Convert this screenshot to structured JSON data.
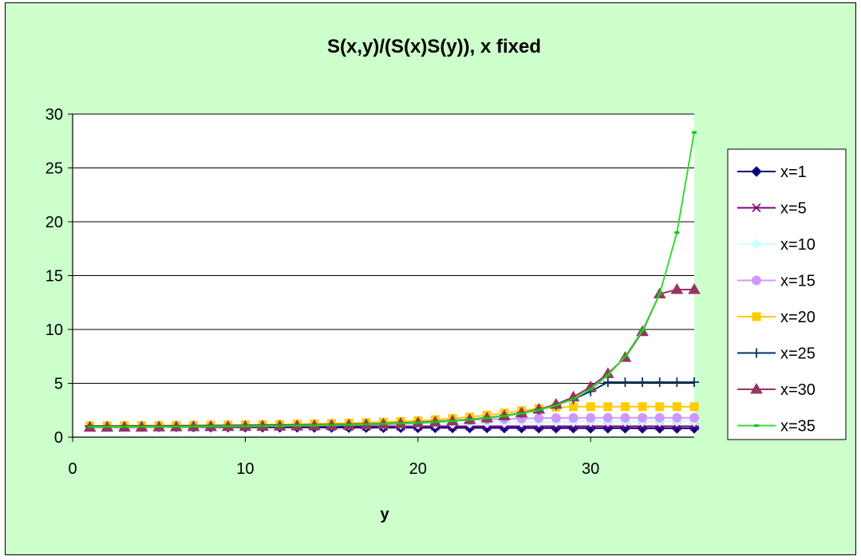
{
  "chart_data": {
    "type": "line",
    "title": "S(x,y)/(S(x)S(y)), x fixed",
    "xlabel": "y",
    "ylabel": "",
    "xlim": [
      0,
      36
    ],
    "ylim": [
      0,
      30
    ],
    "xticks": [
      0,
      10,
      20,
      30
    ],
    "yticks": [
      0,
      5,
      10,
      15,
      20,
      25,
      30
    ],
    "grid": "horizontal",
    "legend": "right",
    "x": [
      1,
      2,
      3,
      4,
      5,
      6,
      7,
      8,
      9,
      10,
      11,
      12,
      13,
      14,
      15,
      16,
      17,
      18,
      19,
      20,
      21,
      22,
      23,
      24,
      25,
      26,
      27,
      28,
      29,
      30,
      31,
      32,
      33,
      34,
      35,
      36
    ],
    "series": [
      {
        "name": "x=1",
        "color": "#000080",
        "marker": "diamond",
        "values": [
          1,
          0.98,
          0.97,
          0.96,
          0.95,
          0.95,
          0.94,
          0.93,
          0.93,
          0.92,
          0.92,
          0.91,
          0.91,
          0.9,
          0.9,
          0.89,
          0.89,
          0.88,
          0.88,
          0.87,
          0.87,
          0.86,
          0.86,
          0.86,
          0.85,
          0.85,
          0.84,
          0.84,
          0.84,
          0.83,
          0.83,
          0.83,
          0.82,
          0.82,
          0.82,
          0.82
        ]
      },
      {
        "name": "x=5",
        "color": "#800080",
        "marker": "asterisk",
        "values": [
          0.95,
          0.96,
          0.97,
          0.97,
          0.98,
          0.98,
          0.99,
          0.99,
          1,
          1,
          1,
          1,
          1,
          1,
          1,
          1,
          1,
          1,
          1,
          1,
          1.01,
          1.01,
          1.01,
          1.01,
          1.01,
          1.01,
          1.01,
          1.01,
          1.01,
          1.01,
          1.01,
          1.01,
          1.01,
          1.01,
          1.01,
          1.01
        ]
      },
      {
        "name": "x=10",
        "color": "#ccffff",
        "marker": "diamond",
        "values": [
          0.97,
          0.98,
          0.99,
          1,
          1,
          1.01,
          1.02,
          1.03,
          1.04,
          1.05,
          1.06,
          1.07,
          1.08,
          1.09,
          1.1,
          1.12,
          1.14,
          1.16,
          1.18,
          1.2,
          1.23,
          1.26,
          1.29,
          1.32,
          1.35,
          1.38,
          1.4,
          1.42,
          1.43,
          1.44,
          1.45,
          1.45,
          1.45,
          1.45,
          1.45,
          1.45
        ]
      },
      {
        "name": "x=15",
        "color": "#cc99ff",
        "marker": "circle",
        "values": [
          0.98,
          0.99,
          1,
          1.01,
          1.02,
          1.03,
          1.04,
          1.05,
          1.06,
          1.08,
          1.1,
          1.12,
          1.14,
          1.17,
          1.2,
          1.23,
          1.27,
          1.31,
          1.36,
          1.41,
          1.47,
          1.53,
          1.59,
          1.64,
          1.69,
          1.73,
          1.76,
          1.78,
          1.79,
          1.8,
          1.8,
          1.8,
          1.8,
          1.8,
          1.8,
          1.8
        ]
      },
      {
        "name": "x=20",
        "color": "#ffcc00",
        "marker": "square",
        "values": [
          1.05,
          1.06,
          1.07,
          1.08,
          1.09,
          1.1,
          1.11,
          1.12,
          1.13,
          1.15,
          1.17,
          1.19,
          1.21,
          1.24,
          1.27,
          1.31,
          1.35,
          1.4,
          1.46,
          1.53,
          1.62,
          1.73,
          1.87,
          2.04,
          2.24,
          2.46,
          2.65,
          2.78,
          2.82,
          2.83,
          2.83,
          2.83,
          2.83,
          2.83,
          2.83,
          2.83
        ]
      },
      {
        "name": "x=25",
        "color": "#003366",
        "marker": "plus",
        "values": [
          1.02,
          1.02,
          1.02,
          1.03,
          1.03,
          1.04,
          1.05,
          1.06,
          1.07,
          1.08,
          1.09,
          1.1,
          1.12,
          1.14,
          1.16,
          1.19,
          1.22,
          1.26,
          1.31,
          1.37,
          1.44,
          1.53,
          1.65,
          1.8,
          1.99,
          2.23,
          2.55,
          2.97,
          3.52,
          4.25,
          5.1,
          5.1,
          5.1,
          5.1,
          5.1,
          5.1
        ]
      },
      {
        "name": "x=30",
        "color": "#993366",
        "marker": "triangle",
        "values": [
          0.92,
          0.92,
          0.93,
          0.93,
          0.94,
          0.95,
          0.96,
          0.97,
          0.98,
          0.99,
          1,
          1.02,
          1.04,
          1.06,
          1.09,
          1.12,
          1.16,
          1.2,
          1.26,
          1.32,
          1.4,
          1.5,
          1.62,
          1.78,
          1.98,
          2.24,
          2.58,
          3.05,
          3.72,
          4.67,
          5.9,
          7.4,
          9.8,
          13.3,
          13.7,
          13.7
        ]
      },
      {
        "name": "x=35",
        "color": "#00cc00",
        "lineColor": "#33dd33",
        "marker": "dash",
        "values": [
          0.95,
          0.96,
          0.96,
          0.97,
          0.98,
          0.98,
          0.99,
          1,
          1.01,
          1.02,
          1.03,
          1.05,
          1.07,
          1.09,
          1.12,
          1.15,
          1.19,
          1.23,
          1.28,
          1.34,
          1.41,
          1.5,
          1.62,
          1.77,
          1.96,
          2.2,
          2.52,
          2.95,
          3.55,
          4.45,
          5.75,
          7.5,
          9.9,
          13.3,
          19,
          28.3
        ]
      }
    ]
  }
}
